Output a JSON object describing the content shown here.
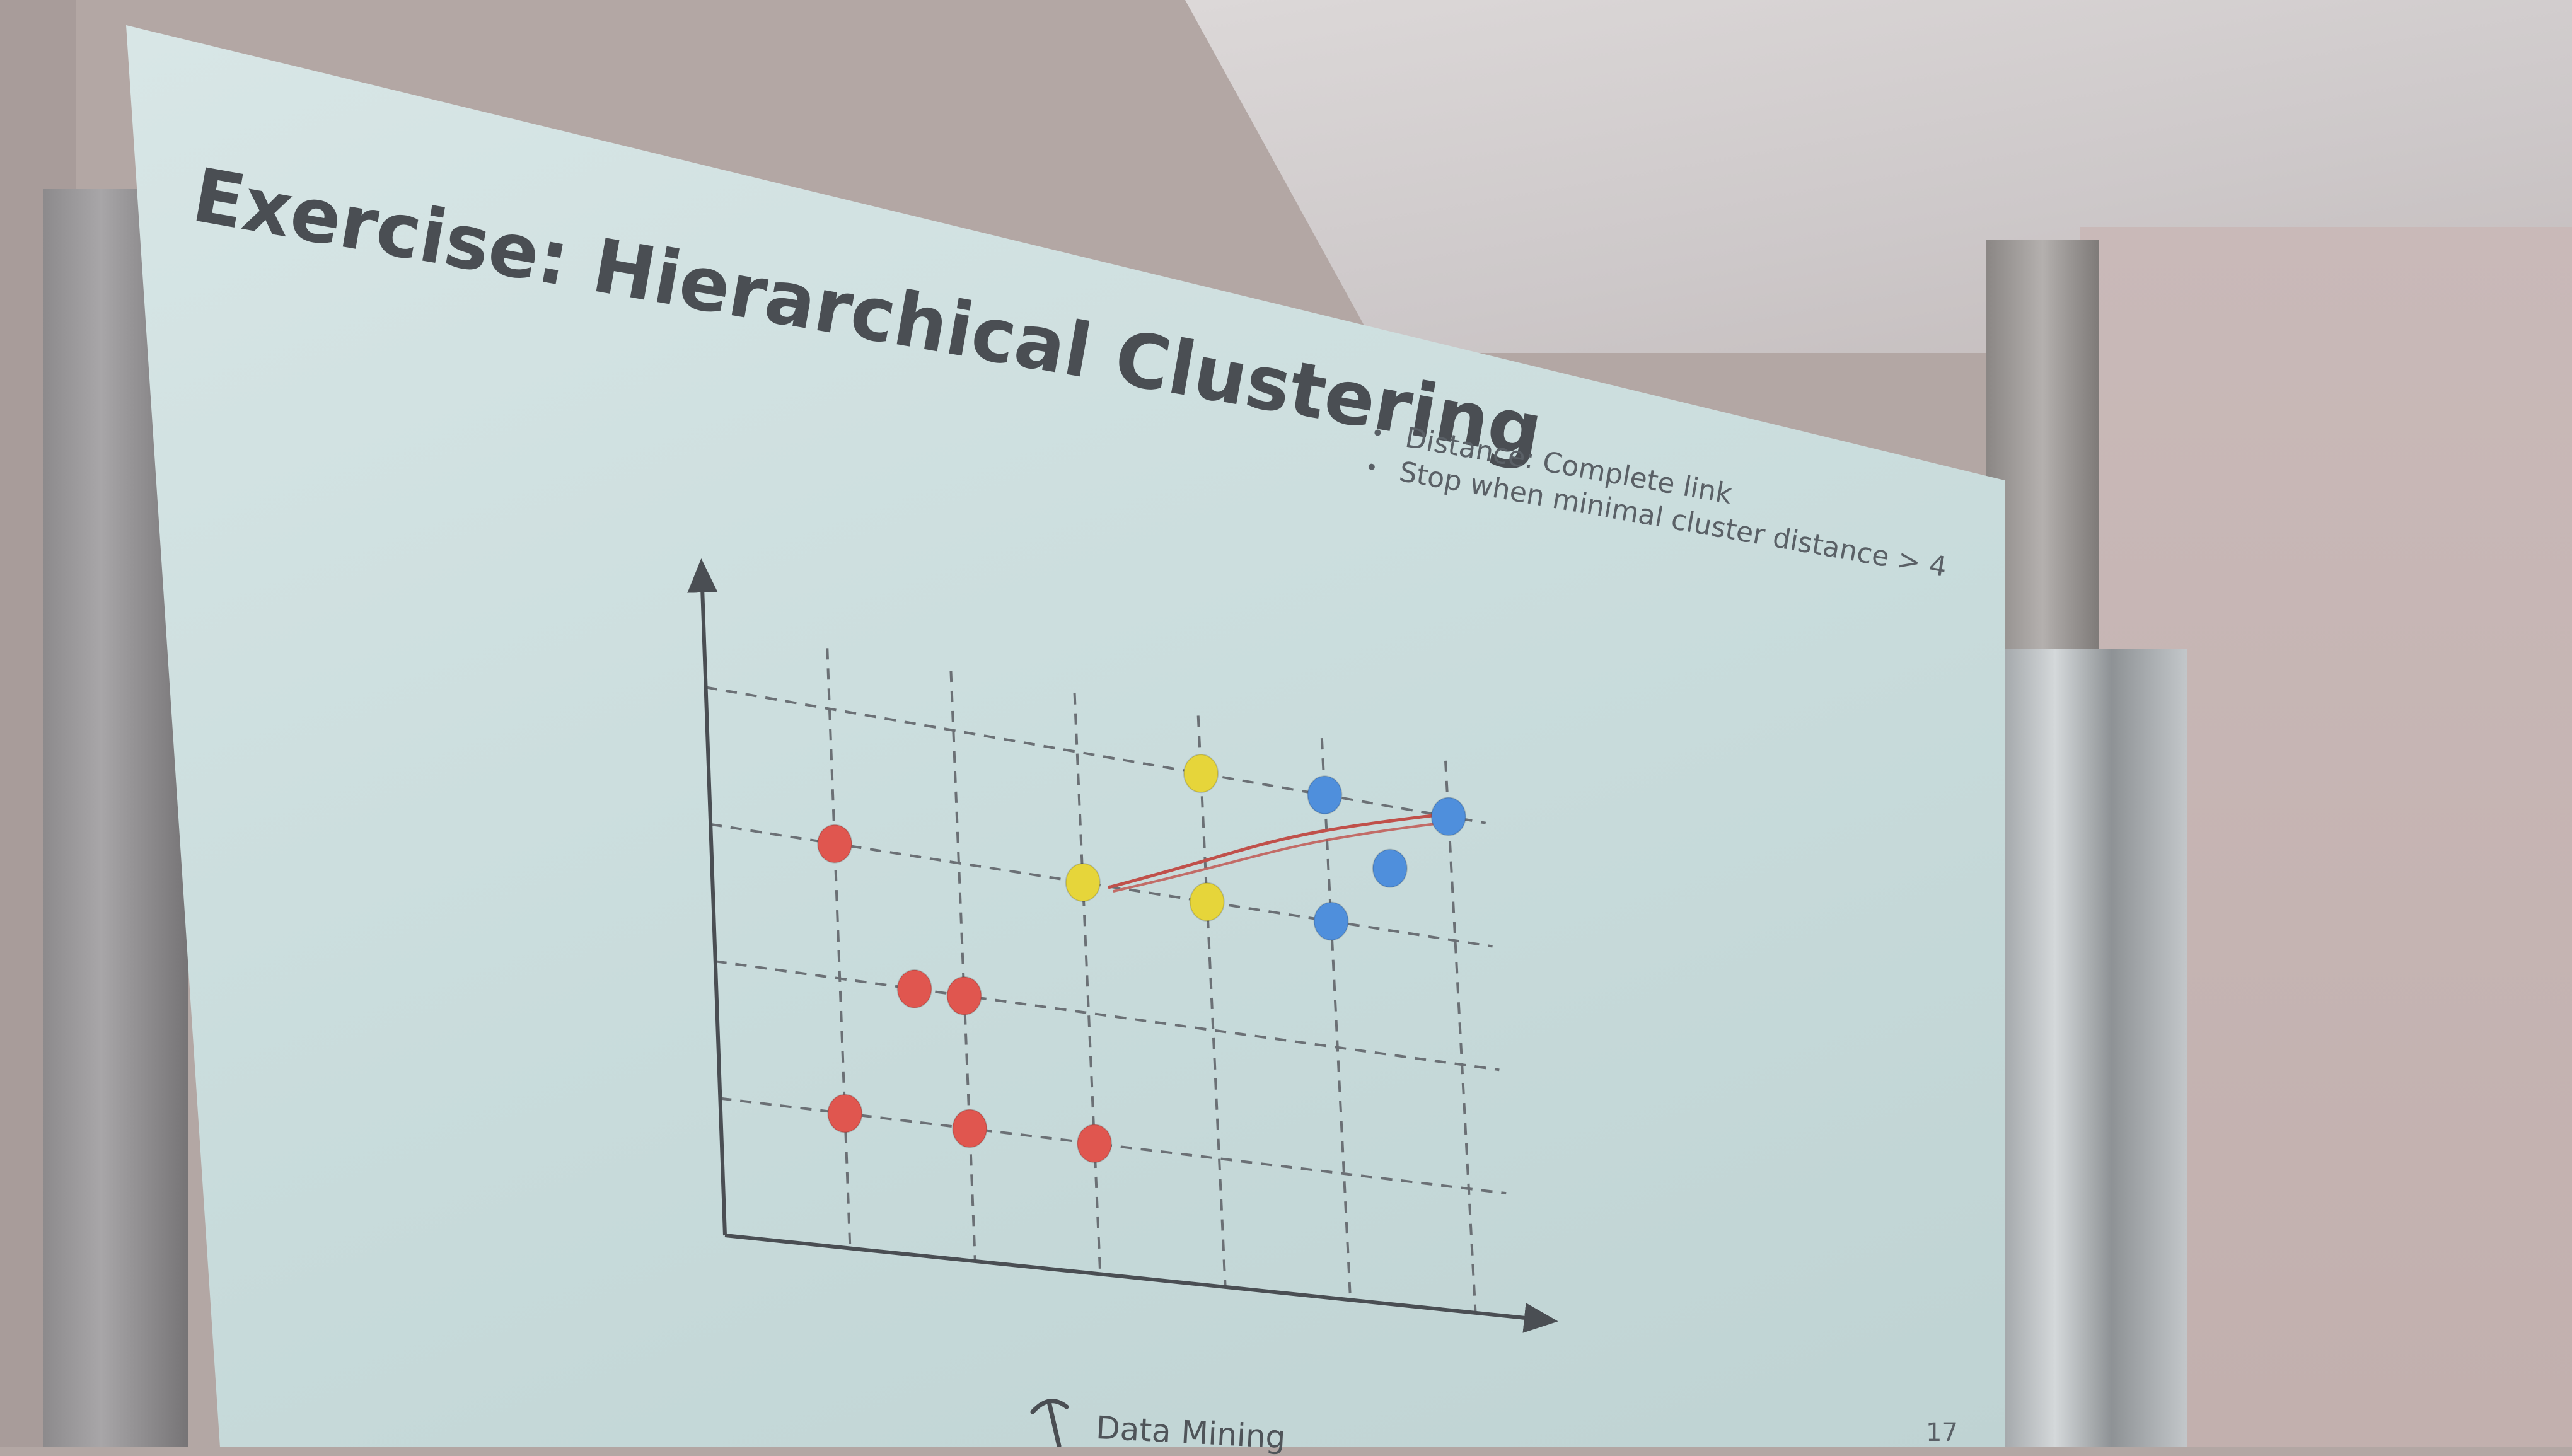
{
  "slide": {
    "title": "Exercise: Hierarchical Clustering",
    "bullets": [
      "Distance: Complete link",
      "Stop when minimal cluster distance > 4"
    ],
    "footer": "Data Mining",
    "page_number": "17"
  },
  "colors": {
    "red": "#e0564f",
    "yellow": "#e6d53a",
    "blue": "#4f8fdc",
    "annotation": "#c0504a",
    "axis": "#4a4e53",
    "grid": "#6b7075",
    "slide_background": "#cfe0e0"
  },
  "scatter": {
    "grid_columns": 6,
    "grid_rows": 4,
    "points": [
      {
        "col": 1,
        "row": 3,
        "color": "red"
      },
      {
        "col": 1.6,
        "row": 2,
        "color": "red"
      },
      {
        "col": 2,
        "row": 2,
        "color": "red"
      },
      {
        "col": 1,
        "row": 1,
        "color": "red"
      },
      {
        "col": 2,
        "row": 1,
        "color": "red"
      },
      {
        "col": 3,
        "row": 1,
        "color": "red"
      },
      {
        "col": 4,
        "row": 4,
        "color": "yellow"
      },
      {
        "col": 3,
        "row": 3,
        "color": "yellow"
      },
      {
        "col": 4,
        "row": 3,
        "color": "yellow"
      },
      {
        "col": 5,
        "row": 4,
        "color": "blue"
      },
      {
        "col": 6,
        "row": 4,
        "color": "blue"
      },
      {
        "col": 5.5,
        "row": 3.5,
        "color": "blue"
      },
      {
        "col": 5,
        "row": 3,
        "color": "blue"
      }
    ],
    "annotation_line": {
      "from": {
        "col": 3,
        "row": 3
      },
      "to": {
        "col": 6,
        "row": 4
      },
      "color": "annotation"
    }
  },
  "icons": {
    "footer_logo": "pickaxe-logo-icon"
  }
}
